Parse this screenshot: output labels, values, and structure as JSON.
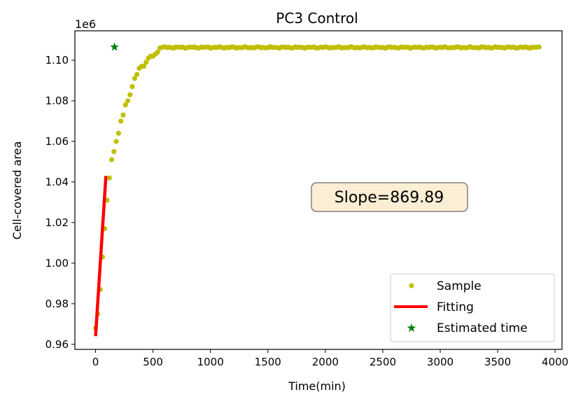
{
  "chart_data": {
    "type": "scatter",
    "title": "PC3 Control",
    "xlabel": "Time(min)",
    "ylabel": "Cell-covered area",
    "y_offset_label": "1e6",
    "y_scale_factor": 1000000,
    "xlim": [
      -180,
      4060
    ],
    "ylim": [
      0.9575,
      1.1145
    ],
    "x_ticks": [
      0,
      500,
      1000,
      1500,
      2000,
      2500,
      3000,
      3500,
      4000
    ],
    "x_tick_labels": [
      "0",
      "500",
      "1000",
      "1500",
      "2000",
      "2500",
      "3000",
      "3500",
      "4000"
    ],
    "y_ticks": [
      0.96,
      0.98,
      1.0,
      1.02,
      1.04,
      1.06,
      1.08,
      1.1
    ],
    "y_tick_labels": [
      "0.96",
      "0.98",
      "1.00",
      "1.02",
      "1.04",
      "1.06",
      "1.08",
      "1.10"
    ],
    "grid": false,
    "legend_position": "lower-right",
    "annotation": {
      "text": "Slope=869.89",
      "x": 2300,
      "y": 1.0305
    },
    "series": [
      {
        "name": "Sample",
        "style": "dots",
        "color": "#bfbf00",
        "x": [
          0,
          20,
          40,
          60,
          80,
          100,
          120,
          140,
          160,
          180,
          200,
          220,
          240,
          260,
          280,
          300,
          320,
          340,
          360,
          380,
          400,
          420,
          440,
          460,
          480,
          500,
          520,
          540,
          560
        ],
        "y": [
          0.968,
          0.975,
          0.987,
          1.003,
          1.017,
          1.031,
          1.042,
          1.051,
          1.055,
          1.06,
          1.064,
          1.07,
          1.073,
          1.078,
          1.08,
          1.083,
          1.087,
          1.091,
          1.093,
          1.096,
          1.097,
          1.097,
          1.099,
          1.101,
          1.102,
          1.102,
          1.103,
          1.104,
          1.106
        ],
        "plateau": {
          "x_start": 580,
          "x_end": 3860,
          "step": 20,
          "y": 1.1063,
          "jitter": 0.0004
        }
      },
      {
        "name": "Fitting",
        "style": "line",
        "color": "#ff0000",
        "x": [
          0,
          90
        ],
        "y": [
          0.964,
          1.043
        ]
      },
      {
        "name": "Estimated time",
        "style": "star",
        "color": "#008000",
        "x": [
          165
        ],
        "y": [
          1.1065
        ]
      }
    ]
  }
}
